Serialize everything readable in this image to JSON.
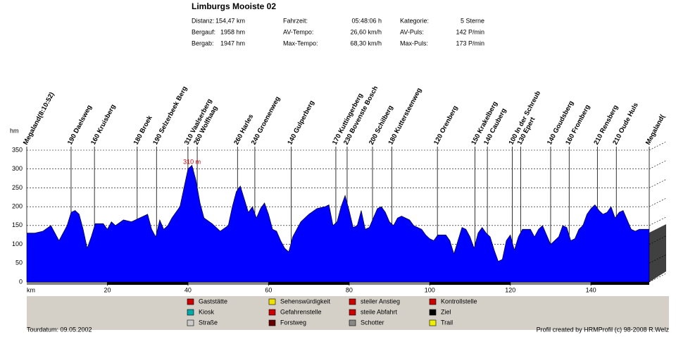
{
  "header": {
    "title": "Limburgs Mooiste 02",
    "stats": [
      [
        "Distanz:",
        "154,47 km",
        "Fahrzeit:",
        "05:48:06 h",
        "Kategorie:",
        "5 Sterne"
      ],
      [
        "Bergauf:",
        "1958 hm",
        "AV-Tempo:",
        "26,60 km/h",
        "AV-Puls:",
        "142 P/min"
      ],
      [
        "Bergab:",
        "1947 hm",
        "Max-Tempo:",
        "68,30 km/h",
        "Max-Puls:",
        "173 P/min"
      ]
    ]
  },
  "chart_data": {
    "type": "area",
    "y_label": "hm",
    "x_label": "km",
    "color": "#0000ff",
    "grid": true,
    "xlim": [
      0,
      154.47
    ],
    "ylim": [
      0,
      350
    ],
    "xticks": [
      20,
      40,
      60,
      80,
      100,
      120,
      140
    ],
    "yticks": [
      0,
      50,
      100,
      150,
      200,
      250,
      300,
      350
    ],
    "x": [
      0,
      2,
      4,
      6,
      8,
      10,
      11,
      12,
      13,
      14,
      15,
      16,
      17,
      19,
      20,
      21,
      22,
      24,
      26,
      28,
      30,
      31,
      32,
      33,
      34,
      35,
      36,
      38,
      39,
      40,
      41,
      42,
      43,
      44,
      46,
      48,
      50,
      51,
      52,
      53,
      54,
      55,
      56,
      57,
      58,
      59,
      60,
      61,
      62,
      63,
      64,
      65,
      66,
      67,
      68,
      70,
      72,
      74,
      75,
      76,
      77,
      78,
      79,
      80,
      81,
      82,
      83,
      84,
      85,
      86,
      87,
      88,
      89,
      90,
      91,
      92,
      93,
      94,
      95,
      96,
      98,
      99,
      100,
      101,
      102,
      104,
      105,
      106,
      107,
      108,
      109,
      110,
      111,
      112,
      113,
      114,
      115,
      116,
      117,
      118,
      119,
      120,
      121,
      122,
      123,
      125,
      126,
      127,
      128,
      130,
      131,
      132,
      133,
      134,
      135,
      136,
      137,
      138,
      139,
      140,
      141,
      142,
      143,
      144,
      145,
      146,
      147,
      148,
      149,
      150,
      151,
      152,
      153,
      154.47
    ],
    "values": [
      130,
      130,
      135,
      150,
      110,
      150,
      185,
      190,
      180,
      140,
      90,
      120,
      155,
      155,
      140,
      160,
      150,
      165,
      160,
      170,
      180,
      140,
      120,
      165,
      140,
      150,
      170,
      200,
      250,
      300,
      310,
      270,
      210,
      170,
      155,
      135,
      150,
      200,
      240,
      255,
      220,
      185,
      200,
      170,
      195,
      210,
      180,
      140,
      135,
      110,
      90,
      80,
      120,
      140,
      160,
      180,
      195,
      200,
      205,
      150,
      160,
      200,
      230,
      190,
      145,
      150,
      190,
      140,
      145,
      170,
      195,
      200,
      185,
      160,
      150,
      170,
      175,
      170,
      165,
      150,
      140,
      125,
      115,
      110,
      125,
      125,
      110,
      75,
      110,
      145,
      140,
      120,
      90,
      130,
      145,
      130,
      120,
      85,
      55,
      60,
      110,
      125,
      85,
      120,
      140,
      140,
      120,
      140,
      150,
      100,
      110,
      120,
      150,
      145,
      110,
      115,
      140,
      150,
      180,
      195,
      205,
      190,
      180,
      185,
      200,
      170,
      185,
      190,
      165,
      140,
      135,
      140,
      140,
      140
    ],
    "annotations": [
      {
        "text": "310 m",
        "x": 41,
        "y": 310
      }
    ],
    "waypoints": [
      {
        "label": "Megaland(8:10:52)",
        "km": 0
      },
      {
        "label": "190  Daelsweg",
        "km": 11
      },
      {
        "label": "160  Kruisberg",
        "km": 16.8
      },
      {
        "label": "180  Broek",
        "km": 27.4
      },
      {
        "label": "190  Selzerbeek Berg",
        "km": 32.2
      },
      {
        "label": "310  Vaalserberg",
        "km": 40
      },
      {
        "label": "260  Wolfhaag",
        "km": 42.3
      },
      {
        "label": "260  Harles",
        "km": 52.3
      },
      {
        "label": "240  Groenenweg",
        "km": 56.6
      },
      {
        "label": "140  Gulperberg",
        "km": 65.6
      },
      {
        "label": "170  Kuttingerberg",
        "km": 76.7
      },
      {
        "label": "230  Bovenste Bosch",
        "km": 79.5
      },
      {
        "label": "200  Schilberg",
        "km": 85.8
      },
      {
        "label": "180  Kuttersteenweg",
        "km": 90.6
      },
      {
        "label": "120  Orenberg",
        "km": 101.9
      },
      {
        "label": "150  Krakelberg",
        "km": 111.2
      },
      {
        "label": "140  Cauberg",
        "km": 114.3
      },
      {
        "label": "100  In der Schreub",
        "km": 120.5
      },
      {
        "label": "130  Epert",
        "km": 122.6
      },
      {
        "label": "140  Goudsberg",
        "km": 130
      },
      {
        "label": "160  Fromberg",
        "km": 134.6
      },
      {
        "label": "210  Rensberg",
        "km": 141.6
      },
      {
        "label": "210  Oude Huls",
        "km": 146.3
      },
      {
        "label": "Megaland(",
        "km": 154.47
      }
    ]
  },
  "legend": [
    [
      "Gaststätte",
      "Sehenswürdigkeit",
      "steiler Anstieg",
      "Kontrollstelle"
    ],
    [
      "Kiosk",
      "Gefahrenstelle",
      "steile Abfahrt",
      "Ziel"
    ],
    [
      "Straße",
      "Forstweg",
      "Schotter",
      "Trail"
    ]
  ],
  "footer": {
    "left": "Tourdatum: 09.05.2002",
    "right": "Profil created by HRMProfil (c) 98-2008 R.Welz"
  }
}
